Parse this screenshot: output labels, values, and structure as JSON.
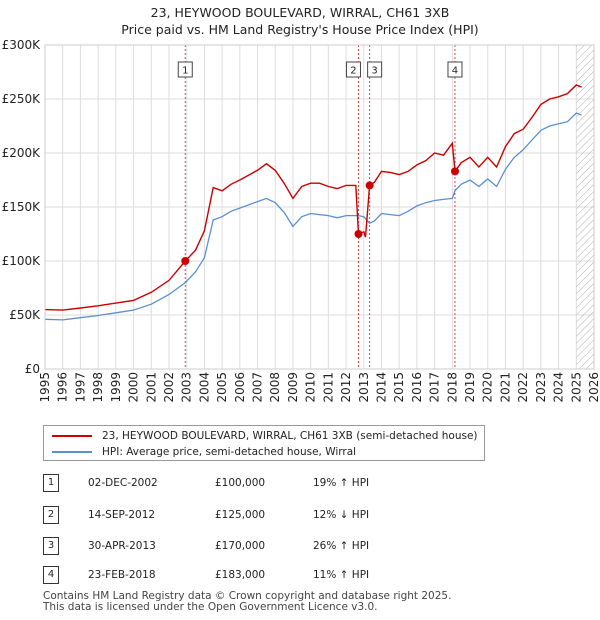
{
  "title": {
    "line1": "23, HEYWOOD BOULEVARD, WIRRAL, CH61 3XB",
    "line2": "Price paid vs. HM Land Registry's House Price Index (HPI)"
  },
  "colors": {
    "property": "#cc0000",
    "hpi": "#5b8fd0",
    "marker": "#cc0000",
    "vline": "#dd4444",
    "hatch": "#bbbbbb"
  },
  "chart_data": {
    "type": "line",
    "xlim": [
      1995,
      2026
    ],
    "ylim": [
      0,
      300000
    ],
    "y_ticks": [
      0,
      50000,
      100000,
      150000,
      200000,
      250000,
      300000
    ],
    "y_tick_labels": [
      "£0",
      "£50K",
      "£100K",
      "£150K",
      "£200K",
      "£250K",
      "£300K"
    ],
    "x_ticks": [
      1995,
      1996,
      1997,
      1998,
      1999,
      2000,
      2001,
      2002,
      2003,
      2004,
      2005,
      2006,
      2007,
      2008,
      2009,
      2010,
      2011,
      2012,
      2013,
      2014,
      2015,
      2016,
      2017,
      2018,
      2019,
      2020,
      2021,
      2022,
      2023,
      2024,
      2025,
      2026
    ],
    "x_tick_labels": [
      "1995",
      "1996",
      "1997",
      "1998",
      "1999",
      "2000",
      "2001",
      "2002",
      "2003",
      "2004",
      "2005",
      "2006",
      "2007",
      "2008",
      "2009",
      "2010",
      "2011",
      "2012",
      "2013",
      "2014",
      "2015",
      "2016",
      "2017",
      "2018",
      "2019",
      "2020",
      "2021",
      "2022",
      "2023",
      "2024",
      "2025",
      "2026"
    ],
    "forecast_start": 2025.0,
    "series": [
      {
        "name": "23, HEYWOOD BOULEVARD, WIRRAL, CH61 3XB (semi-detached house)",
        "points": [
          [
            1995.0,
            55000
          ],
          [
            1996.0,
            54500
          ],
          [
            1997.0,
            56500
          ],
          [
            1998.0,
            58500
          ],
          [
            1999.0,
            61000
          ],
          [
            2000.0,
            63500
          ],
          [
            2001.0,
            71000
          ],
          [
            2002.0,
            82000
          ],
          [
            2002.92,
            100000
          ],
          [
            2003.5,
            110000
          ],
          [
            2004.0,
            128000
          ],
          [
            2004.5,
            168000
          ],
          [
            2005.0,
            165000
          ],
          [
            2005.5,
            171000
          ],
          [
            2006.0,
            175000
          ],
          [
            2007.0,
            184000
          ],
          [
            2007.5,
            190000
          ],
          [
            2008.0,
            184000
          ],
          [
            2008.5,
            172000
          ],
          [
            2009.0,
            158000
          ],
          [
            2009.5,
            169000
          ],
          [
            2010.0,
            172000
          ],
          [
            2010.5,
            172000
          ],
          [
            2011.0,
            169000
          ],
          [
            2011.5,
            167000
          ],
          [
            2012.0,
            170000
          ],
          [
            2012.55,
            170000
          ],
          [
            2012.7,
            125000
          ],
          [
            2013.0,
            127000
          ],
          [
            2013.1,
            122000
          ],
          [
            2013.33,
            170000
          ],
          [
            2013.6,
            173000
          ],
          [
            2014.0,
            183000
          ],
          [
            2014.5,
            182000
          ],
          [
            2015.0,
            180000
          ],
          [
            2015.5,
            183000
          ],
          [
            2016.0,
            189000
          ],
          [
            2016.5,
            193000
          ],
          [
            2017.0,
            200000
          ],
          [
            2017.5,
            198000
          ],
          [
            2018.0,
            209000
          ],
          [
            2018.15,
            183000
          ],
          [
            2018.5,
            191000
          ],
          [
            2019.0,
            196000
          ],
          [
            2019.5,
            187000
          ],
          [
            2020.0,
            196000
          ],
          [
            2020.5,
            187000
          ],
          [
            2021.0,
            206000
          ],
          [
            2021.5,
            218000
          ],
          [
            2022.0,
            222000
          ],
          [
            2022.5,
            233000
          ],
          [
            2023.0,
            245000
          ],
          [
            2023.5,
            250000
          ],
          [
            2024.0,
            252000
          ],
          [
            2024.5,
            255000
          ],
          [
            2025.0,
            263000
          ],
          [
            2025.3,
            261000
          ]
        ]
      },
      {
        "name": "HPI: Average price, semi-detached house, Wirral",
        "points": [
          [
            1995.0,
            46000
          ],
          [
            1996.0,
            45500
          ],
          [
            1997.0,
            47500
          ],
          [
            1998.0,
            49500
          ],
          [
            1999.0,
            52000
          ],
          [
            2000.0,
            54500
          ],
          [
            2001.0,
            60000
          ],
          [
            2002.0,
            69000
          ],
          [
            2002.92,
            80000
          ],
          [
            2003.5,
            90000
          ],
          [
            2004.0,
            103000
          ],
          [
            2004.5,
            138000
          ],
          [
            2005.0,
            141000
          ],
          [
            2005.5,
            146000
          ],
          [
            2006.0,
            149000
          ],
          [
            2007.0,
            155000
          ],
          [
            2007.5,
            158000
          ],
          [
            2008.0,
            154000
          ],
          [
            2008.5,
            145000
          ],
          [
            2009.0,
            132000
          ],
          [
            2009.5,
            141000
          ],
          [
            2010.0,
            144000
          ],
          [
            2010.5,
            143000
          ],
          [
            2011.0,
            142000
          ],
          [
            2011.5,
            140000
          ],
          [
            2012.0,
            142000
          ],
          [
            2012.7,
            142000
          ],
          [
            2013.0,
            141000
          ],
          [
            2013.33,
            135000
          ],
          [
            2013.6,
            137000
          ],
          [
            2014.0,
            144000
          ],
          [
            2014.5,
            143000
          ],
          [
            2015.0,
            142000
          ],
          [
            2015.5,
            146000
          ],
          [
            2016.0,
            151000
          ],
          [
            2016.5,
            154000
          ],
          [
            2017.0,
            156000
          ],
          [
            2017.5,
            157000
          ],
          [
            2018.0,
            158000
          ],
          [
            2018.15,
            165000
          ],
          [
            2018.5,
            171000
          ],
          [
            2019.0,
            175000
          ],
          [
            2019.5,
            169000
          ],
          [
            2020.0,
            176000
          ],
          [
            2020.5,
            169000
          ],
          [
            2021.0,
            185000
          ],
          [
            2021.5,
            196000
          ],
          [
            2022.0,
            203000
          ],
          [
            2022.5,
            212000
          ],
          [
            2023.0,
            221000
          ],
          [
            2023.5,
            225000
          ],
          [
            2024.0,
            227000
          ],
          [
            2024.5,
            229000
          ],
          [
            2025.0,
            237000
          ],
          [
            2025.3,
            235000
          ]
        ]
      }
    ],
    "sales": [
      {
        "label": "1",
        "x": 2002.92,
        "value": 100000
      },
      {
        "label": "2",
        "x": 2012.7,
        "value": 125000
      },
      {
        "label": "3",
        "x": 2013.33,
        "value": 170000
      },
      {
        "label": "4",
        "x": 2018.15,
        "value": 183000
      }
    ]
  },
  "legend": {
    "property": "23, HEYWOOD BOULEVARD, WIRRAL, CH61 3XB (semi-detached house)",
    "hpi": "HPI: Average price, semi-detached house, Wirral"
  },
  "table": [
    {
      "num": "1",
      "date": "02-DEC-2002",
      "price": "£100,000",
      "hpi": "19% ↑ HPI"
    },
    {
      "num": "2",
      "date": "14-SEP-2012",
      "price": "£125,000",
      "hpi": "12% ↓ HPI"
    },
    {
      "num": "3",
      "date": "30-APR-2013",
      "price": "£170,000",
      "hpi": "26% ↑ HPI"
    },
    {
      "num": "4",
      "date": "23-FEB-2018",
      "price": "£183,000",
      "hpi": "11% ↑ HPI"
    }
  ],
  "footer": {
    "line1": "Contains HM Land Registry data © Crown copyright and database right 2025.",
    "line2": "This data is licensed under the Open Government Licence v3.0."
  }
}
